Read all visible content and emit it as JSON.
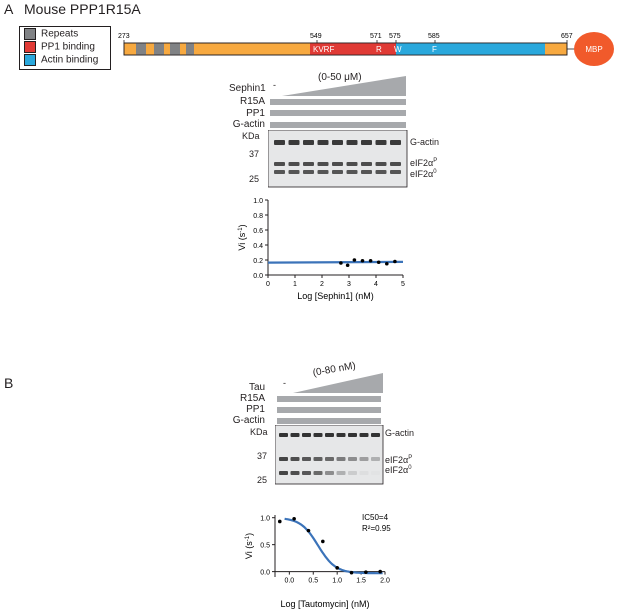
{
  "panel_a": {
    "letter": "A",
    "title": "Mouse PPP1R15A",
    "legend": [
      {
        "label": "Repeats",
        "color": "#808285"
      },
      {
        "label": "PP1 binding",
        "color": "#e03a35"
      },
      {
        "label": "Actin binding",
        "color": "#2aa8dc"
      }
    ],
    "domain_numbers": [
      "273",
      "549",
      "571",
      "575",
      "585",
      "657"
    ],
    "domain_letters": {
      "kvrf": "KVRF",
      "r": "R",
      "w": "W",
      "f": "F"
    },
    "mbp_label": "MBP",
    "colors": {
      "orange": "#f7a940",
      "red": "#e03a35",
      "blue": "#2aa8dc",
      "grey": "#808285",
      "mbp": "#f15a2b"
    },
    "treatment_label": "Sephin1",
    "treatment_dash": "-",
    "range_label": "(0-50 μM)",
    "row_labels": [
      "R15A",
      "PP1",
      "G-actin"
    ],
    "kda_label": "KDa",
    "mw_markers": [
      "37",
      "25"
    ],
    "band_labels": [
      "G-actin",
      "eIF2α",
      "eIF2α"
    ],
    "band_superscripts": [
      "P",
      "0"
    ],
    "plot": {
      "ylabel": "Vi (s",
      "ylabel_sup": "-1",
      "ylabel_close": ")",
      "xlabel": "Log [Sephin1] (nM)",
      "y_ticks": [
        "0.0",
        "0.2",
        "0.4",
        "0.6",
        "0.8",
        "1.0"
      ],
      "x_ticks": [
        "0",
        "1",
        "2",
        "3",
        "4",
        "5"
      ]
    }
  },
  "panel_b": {
    "letter": "B",
    "treatment_label": "Tau",
    "treatment_dash": "-",
    "range_label": "(0-80 nM)",
    "row_labels": [
      "R15A",
      "PP1",
      "G-actin"
    ],
    "kda_label": "KDa",
    "mw_markers": [
      "37",
      "25"
    ],
    "band_labels": [
      "G-actin",
      "eIF2α",
      "eIF2α"
    ],
    "band_superscripts": [
      "P",
      "0"
    ],
    "plot": {
      "ylabel": "Vi (s",
      "ylabel_sup": "-1",
      "ylabel_close": ")",
      "xlabel": "Log [Tautomycin] (nM)",
      "y_ticks": [
        "0.0",
        "0.5",
        "1.0"
      ],
      "x_ticks": [
        "0.0",
        "0.5",
        "1.0",
        "1.5",
        "2.0"
      ],
      "ic50": "IC50=4",
      "r2": "R²=0.95"
    }
  },
  "chart_data": [
    {
      "type": "scatter",
      "xlabel": "Log [Sephin1] (nM)",
      "ylabel": "Vi (s-1)",
      "xlim": [
        0,
        5
      ],
      "ylim": [
        0,
        1.0
      ],
      "points": [
        {
          "x": 2.7,
          "y": 0.16
        },
        {
          "x": 2.95,
          "y": 0.13
        },
        {
          "x": 3.2,
          "y": 0.2
        },
        {
          "x": 3.5,
          "y": 0.19
        },
        {
          "x": 3.8,
          "y": 0.19
        },
        {
          "x": 4.1,
          "y": 0.17
        },
        {
          "x": 4.4,
          "y": 0.15
        },
        {
          "x": 4.7,
          "y": 0.18
        }
      ],
      "fit": [
        [
          0,
          0.165
        ],
        [
          5,
          0.175
        ]
      ],
      "colors": {
        "points": "#000000",
        "fit": "#3b73b9"
      }
    },
    {
      "type": "scatter",
      "xlabel": "Log [Tautomycin] (nM)",
      "ylabel": "Vi (s-1)",
      "xlim": [
        -0.3,
        2.0
      ],
      "ylim": [
        -0.1,
        1.05
      ],
      "points": [
        {
          "x": -0.2,
          "y": 0.93
        },
        {
          "x": 0.1,
          "y": 0.98
        },
        {
          "x": 0.4,
          "y": 0.76
        },
        {
          "x": 0.7,
          "y": 0.56
        },
        {
          "x": 1.0,
          "y": 0.07
        },
        {
          "x": 1.3,
          "y": -0.02
        },
        {
          "x": 1.6,
          "y": -0.01
        },
        {
          "x": 1.9,
          "y": 0.0
        }
      ],
      "fit_model": {
        "top": 1.0,
        "bottom": -0.03,
        "logIC50": 0.6,
        "hill": 1.2
      },
      "colors": {
        "points": "#000000",
        "fit": "#3b73b9"
      }
    }
  ]
}
